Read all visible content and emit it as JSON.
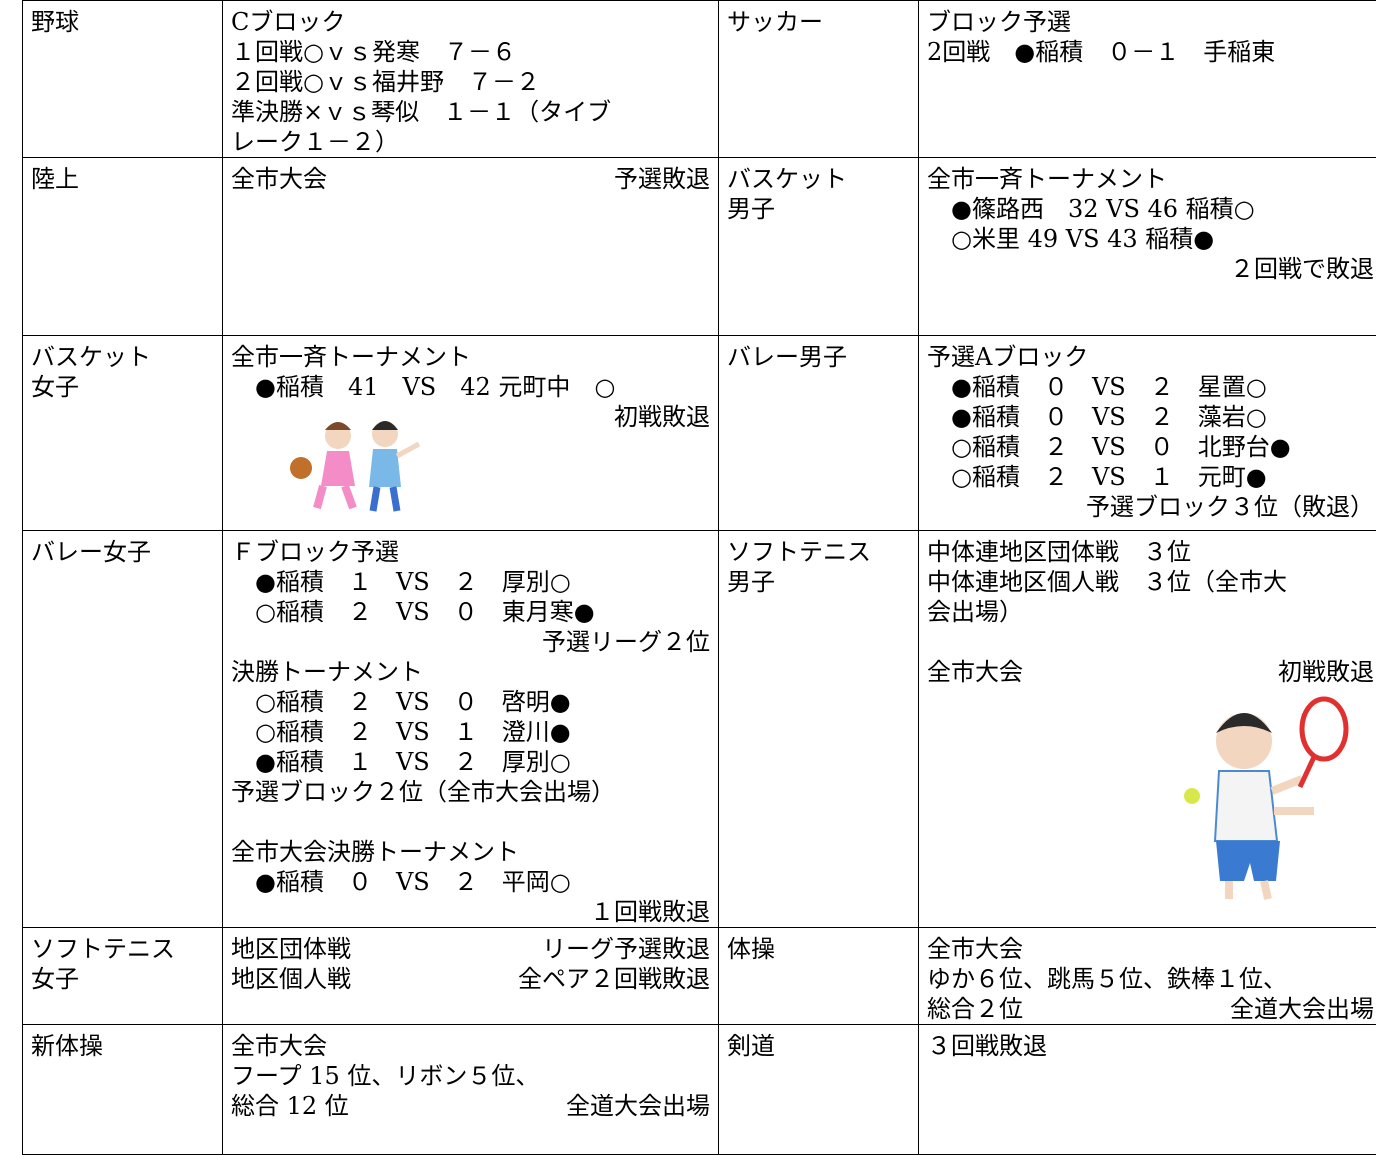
{
  "table": {
    "rows": [
      [
        [
          "野球"
        ],
        [
          "Cブロック",
          "１回戦○ｖｓ発寒　７－６",
          "２回戦○ｖｓ福井野　７－２",
          "準決勝×ｖｓ琴似　１－１（タイブ",
          "レーク１－２）"
        ],
        [
          "サッカー"
        ],
        [
          "ブロック予選",
          "2回戦　●稲積　０－１　手稲東"
        ]
      ],
      [
        [
          "陸上"
        ],
        [
          {
            "left": "全市大会",
            "right": "予選敗退"
          }
        ],
        [
          "バスケット",
          "男子"
        ],
        [
          "全市一斉トーナメント",
          "　●篠路西　32 VS 46 稲積○",
          "　○米里 49 VS 43 稲積●",
          {
            "right": "２回戦で敗退"
          }
        ]
      ],
      [
        [
          "バスケット",
          "女子"
        ],
        [
          "全市一斉トーナメント",
          "　●稲積　41　VS　42 元町中　○",
          {
            "right": "初戦敗退"
          }
        ],
        [
          "バレー男子"
        ],
        [
          "予選Aブロック",
          "　●稲積　０　VS　２　星置○",
          "　●稲積　０　VS　２　藻岩○",
          "　○稲積　２　VS　０　北野台●",
          "　○稲積　２　VS　１　元町●",
          {
            "right": "予選ブロック３位（敗退）"
          }
        ]
      ],
      [
        [
          "バレー女子"
        ],
        [
          "Ｆブロック予選",
          "　●稲積　１　VS　２　厚別○",
          "　○稲積　２　VS　０　東月寒●",
          {
            "right": "予選リーグ２位"
          },
          "決勝トーナメント",
          "　○稲積　２　VS　０　啓明●",
          "　○稲積　２　VS　１　澄川●",
          "　●稲積　１　VS　２　厚別○",
          "予選ブロック２位（全市大会出場）",
          "全市大会決勝トーナメント",
          "　●稲積　０　VS　２　平岡○",
          {
            "right": "１回戦敗退"
          }
        ],
        [
          "ソフトテニス",
          "男子"
        ],
        [
          "中体連地区団体戦　３位",
          "中体連地区個人戦　３位（全市大",
          "会出場）",
          {
            "left": "全市大会",
            "right": "初戦敗退"
          }
        ]
      ],
      [
        [
          "ソフトテニス",
          "女子"
        ],
        [
          {
            "left": "地区団体戦",
            "right": "リーグ予選敗退"
          },
          {
            "left": "地区個人戦",
            "right": "全ペア２回戦敗退"
          }
        ],
        [
          "体操"
        ],
        [
          "全市大会",
          "ゆか６位、跳馬５位、鉄棒１位、",
          {
            "left": "総合２位",
            "right": "全道大会出場"
          }
        ]
      ],
      [
        [
          "新体操"
        ],
        [
          "全市大会",
          "フープ 15 位、リボン５位、",
          {
            "left": "総合 12 位",
            "right": "全道大会出場"
          }
        ],
        [
          "剣道"
        ],
        [
          "３回戦敗退"
        ]
      ]
    ]
  }
}
